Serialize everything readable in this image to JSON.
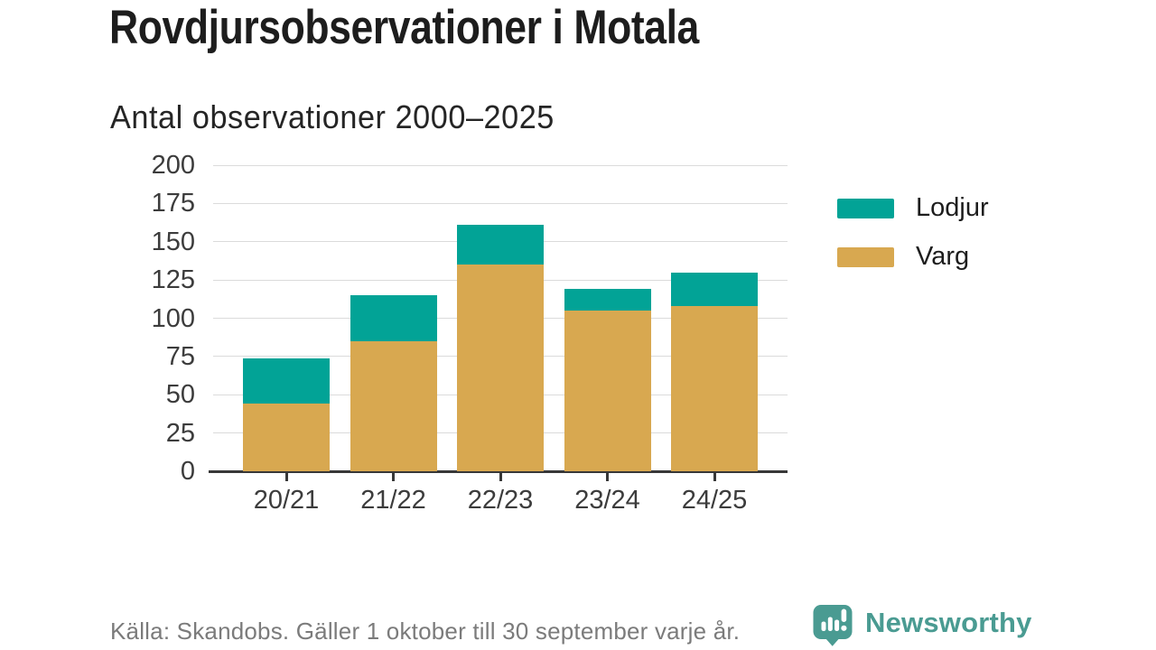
{
  "title": "Rovdjursobservationer i Motala",
  "subtitle": "Antal observationer 2000–2025",
  "colors": {
    "lodjur": "#02a396",
    "varg": "#d8a850",
    "brand": "#4a9b92",
    "grid": "#dbdbdb",
    "axis": "#383838",
    "title_text": "#1d1d1d",
    "axis_text": "#3c3c3c",
    "muted_text": "#7b7b7b"
  },
  "chart_data": {
    "type": "bar",
    "stacked": true,
    "title": "Rovdjursobservationer i Motala",
    "subtitle": "Antal observationer 2000–2025",
    "categories": [
      "20/21",
      "21/22",
      "22/23",
      "23/24",
      "24/25"
    ],
    "series": [
      {
        "name": "Varg",
        "color_key": "varg",
        "values": [
          44,
          85,
          135,
          105,
          108
        ]
      },
      {
        "name": "Lodjur",
        "color_key": "lodjur",
        "values": [
          30,
          30,
          26,
          14,
          22
        ]
      }
    ],
    "totals": [
      74,
      115,
      161,
      119,
      130
    ],
    "ylim": [
      0,
      200
    ],
    "ytick_step": 25,
    "yticks": [
      0,
      25,
      50,
      75,
      100,
      125,
      150,
      175,
      200
    ],
    "grid": true,
    "legend_position": "right",
    "legend": [
      {
        "label": "Lodjur",
        "color_key": "lodjur"
      },
      {
        "label": "Varg",
        "color_key": "varg"
      }
    ]
  },
  "footer": {
    "source": "Källa: Skandobs. Gäller 1 oktober till 30 september varje år."
  },
  "brand": {
    "name": "Newsworthy",
    "logo_icon": "bar-chart-exclamation-speech-bubble-icon"
  }
}
